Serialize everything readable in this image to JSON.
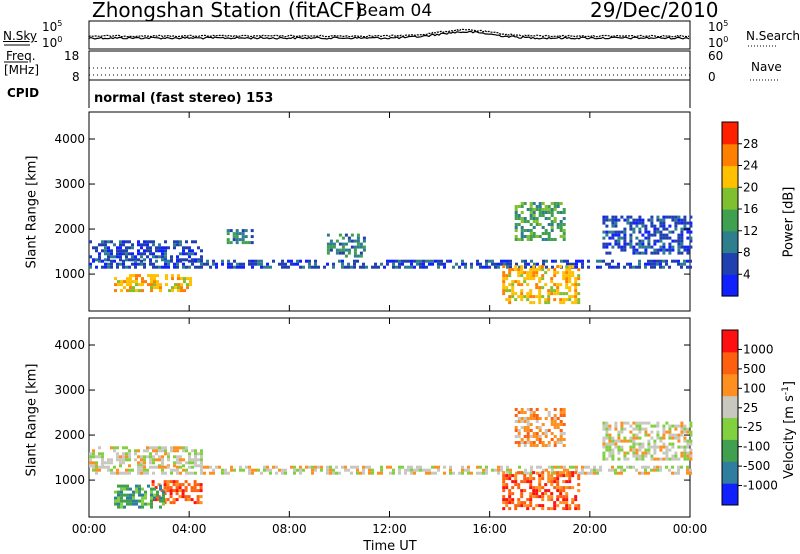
{
  "header": {
    "station": "Zhongshan Station (fitACF)",
    "beam": "Beam 04",
    "date": "29/Dec/2010"
  },
  "noise_panel": {
    "left_label": "N.Sky",
    "right_label": "N.Search",
    "ticks_left": [
      "10^5",
      "10^0"
    ],
    "ticks_right": [
      "10^5",
      "10^0"
    ]
  },
  "freq_panel": {
    "left_label_1": "Freq.",
    "left_label_2": "[MHz]",
    "right_label": "Nave",
    "ticks_left": [
      "18",
      "8"
    ],
    "ticks_right": [
      "60",
      "0"
    ]
  },
  "cpid": {
    "label": "CPID",
    "mode_text": "normal (fast stereo) 153"
  },
  "x_axis": {
    "title": "Time UT",
    "ticks": [
      "00:00",
      "04:00",
      "08:00",
      "12:00",
      "16:00",
      "20:00",
      "00:00"
    ]
  },
  "chart_data": [
    {
      "type": "heatmap",
      "title": "",
      "xlabel": "Time UT",
      "ylabel": "Slant Range [km]",
      "xlim_hours": [
        0,
        24
      ],
      "ylim_km": [
        180,
        4600
      ],
      "x_ticks": [
        "00:00",
        "04:00",
        "08:00",
        "12:00",
        "16:00",
        "20:00",
        "00:00"
      ],
      "y_ticks": [
        1000,
        2000,
        3000,
        4000
      ],
      "colorbar": {
        "label": "Power [dB]",
        "ticks": [
          "28",
          "24",
          "20",
          "16",
          "12",
          "8",
          "4"
        ],
        "levels": 8,
        "colors": [
          "#1020ff",
          "#2040b0",
          "#2f7e8e",
          "#3fa050",
          "#80c030",
          "#ffc000",
          "#ff8000",
          "#ff2000"
        ]
      },
      "scatter_regions_hours_km": [
        {
          "t": [
            0.0,
            4.5
          ],
          "r": [
            1300,
            1750
          ],
          "level": 1
        },
        {
          "t": [
            0.0,
            24.0
          ],
          "r": [
            1180,
            1320
          ],
          "level": 1
        },
        {
          "t": [
            1.0,
            4.0
          ],
          "r": [
            650,
            1000
          ],
          "level": 5
        },
        {
          "t": [
            5.5,
            6.5
          ],
          "r": [
            1700,
            2000
          ],
          "level": 2
        },
        {
          "t": [
            9.5,
            11.0
          ],
          "r": [
            1400,
            1900
          ],
          "level": 2
        },
        {
          "t": [
            16.5,
            19.5
          ],
          "r": [
            400,
            1200
          ],
          "level": 5
        },
        {
          "t": [
            17.0,
            19.0
          ],
          "r": [
            1800,
            2600
          ],
          "level": 3
        },
        {
          "t": [
            20.5,
            24.0
          ],
          "r": [
            1500,
            2300
          ],
          "level": 1
        }
      ]
    },
    {
      "type": "heatmap",
      "title": "",
      "xlabel": "Time UT",
      "ylabel": "Slant Range [km]",
      "xlim_hours": [
        0,
        24
      ],
      "ylim_km": [
        180,
        4600
      ],
      "x_ticks": [
        "00:00",
        "04:00",
        "08:00",
        "12:00",
        "16:00",
        "20:00",
        "00:00"
      ],
      "y_ticks": [
        1000,
        2000,
        3000,
        4000
      ],
      "colorbar": {
        "label": "Velocity [m s^-1]",
        "ticks": [
          "1000",
          "500",
          "100",
          "25",
          "-25",
          "-100",
          "-500",
          "-1000"
        ],
        "levels": 8,
        "colors": [
          "#1020ff",
          "#2f7ea0",
          "#40a050",
          "#80d040",
          "#c8c8c0",
          "#ff9020",
          "#ff6010",
          "#ff1010"
        ]
      },
      "scatter_regions_hours_km": [
        {
          "t": [
            0.0,
            4.5
          ],
          "r": [
            1300,
            1750
          ],
          "level": 4
        },
        {
          "t": [
            0.0,
            24.0
          ],
          "r": [
            1180,
            1320
          ],
          "level": 4
        },
        {
          "t": [
            2.5,
            4.5
          ],
          "r": [
            500,
            1000
          ],
          "level": 6
        },
        {
          "t": [
            1.0,
            3.0
          ],
          "r": [
            400,
            900
          ],
          "level": 2
        },
        {
          "t": [
            16.5,
            19.5
          ],
          "r": [
            400,
            1200
          ],
          "level": 6
        },
        {
          "t": [
            17.0,
            19.0
          ],
          "r": [
            1800,
            2600
          ],
          "level": 5
        },
        {
          "t": [
            20.5,
            24.0
          ],
          "r": [
            1500,
            2300
          ],
          "level": 4
        }
      ]
    }
  ]
}
